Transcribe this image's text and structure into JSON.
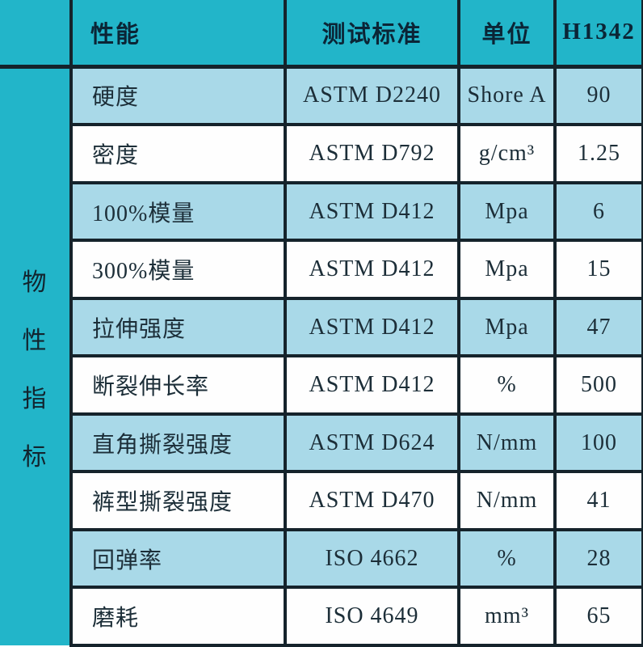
{
  "colors": {
    "cyan": "#22b5c9",
    "light_blue": "#a9d9e8",
    "white_row": "#fefefe",
    "border": "#15232b",
    "header_text": "#0b2536",
    "body_text": "#1c2e38"
  },
  "side_label": {
    "text": "物性指标",
    "chars": [
      "物",
      "性",
      "指",
      "标"
    ]
  },
  "table": {
    "columns": [
      {
        "key": "property",
        "label": "性能"
      },
      {
        "key": "standard",
        "label": "测试标准"
      },
      {
        "key": "unit",
        "label": "单位"
      },
      {
        "key": "value",
        "label": "H1342"
      }
    ],
    "rows": [
      {
        "property": "硬度",
        "standard": "ASTM D2240",
        "unit": "Shore A",
        "value": "90",
        "shaded": true
      },
      {
        "property": "密度",
        "standard": "ASTM D792",
        "unit": "g/cm³",
        "value": "1.25",
        "shaded": false
      },
      {
        "property": "100%模量",
        "standard": "ASTM D412",
        "unit": "Mpa",
        "value": "6",
        "shaded": true
      },
      {
        "property": "300%模量",
        "standard": "ASTM D412",
        "unit": "Mpa",
        "value": "15",
        "shaded": false
      },
      {
        "property": "拉伸强度",
        "standard": "ASTM D412",
        "unit": "Mpa",
        "value": "47",
        "shaded": true
      },
      {
        "property": "断裂伸长率",
        "standard": "ASTM D412",
        "unit": "%",
        "value": "500",
        "shaded": false
      },
      {
        "property": "直角撕裂强度",
        "standard": "ASTM D624",
        "unit": "N/mm",
        "value": "100",
        "shaded": true
      },
      {
        "property": "裤型撕裂强度",
        "standard": "ASTM D470",
        "unit": "N/mm",
        "value": "41",
        "shaded": false
      },
      {
        "property": "回弹率",
        "standard": "ISO 4662",
        "unit": "%",
        "value": "28",
        "shaded": true
      },
      {
        "property": "磨耗",
        "standard": "ISO 4649",
        "unit": "mm³",
        "value": "65",
        "shaded": false
      }
    ]
  }
}
